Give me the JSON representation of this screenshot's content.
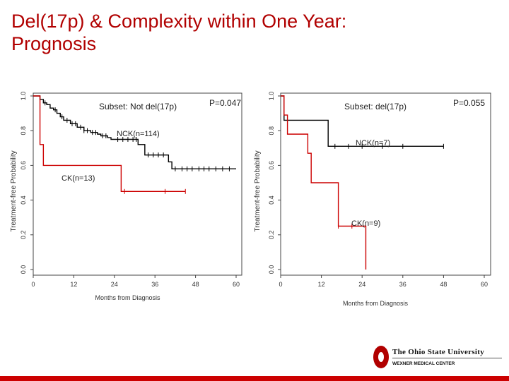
{
  "slide": {
    "title_line1": "Del(17p) & Complexity within One Year:",
    "title_line2": "Prognosis",
    "accent_color": "#cc0000"
  },
  "logo": {
    "name": "The Ohio State University",
    "subtitle": "WEXNER MEDICAL CENTER",
    "color": "#b10000"
  },
  "chart_data": [
    {
      "type": "line",
      "subset_label": "Subset: Not del(17p)",
      "p_value": "P=0.047",
      "xlabel": "Months from Diagnosis",
      "ylabel": "Treatment-free Probability",
      "xlim": [
        0,
        60
      ],
      "ylim": [
        0,
        1
      ],
      "x_ticks": [
        "0",
        "12",
        "24",
        "36",
        "48",
        "60"
      ],
      "y_ticks": [
        "0.0",
        "0.2",
        "0.4",
        "0.6",
        "0.8",
        "1.0"
      ],
      "grid": false,
      "series": [
        {
          "name": "NCK(n=114)",
          "color": "#000000",
          "x": [
            0,
            2,
            3,
            4,
            5,
            6,
            7,
            8,
            9,
            11,
            13,
            15,
            17,
            19,
            20,
            22,
            23,
            31,
            33,
            40,
            41,
            60
          ],
          "y": [
            1.0,
            0.98,
            0.96,
            0.95,
            0.93,
            0.92,
            0.9,
            0.88,
            0.86,
            0.84,
            0.82,
            0.8,
            0.79,
            0.78,
            0.77,
            0.76,
            0.75,
            0.72,
            0.66,
            0.62,
            0.58,
            0.58
          ],
          "censor_x": [
            3.5,
            6.5,
            8.5,
            10,
            11.5,
            12.5,
            14,
            15,
            16,
            17.5,
            18.5,
            20.5,
            21.5,
            25,
            26.5,
            28,
            29.5,
            30.5,
            34,
            35.5,
            37,
            38.5,
            42,
            44,
            45.5,
            47,
            49,
            50.5,
            52,
            54,
            56,
            58
          ]
        },
        {
          "name": "CK(n=13)",
          "color": "#cc0000",
          "x": [
            0,
            2,
            3,
            26,
            45
          ],
          "y": [
            1.0,
            0.72,
            0.6,
            0.45,
            0.45
          ],
          "censor_x": [
            27,
            39,
            45
          ]
        }
      ]
    },
    {
      "type": "line",
      "subset_label": "Subset: del(17p)",
      "p_value": "P=0.055",
      "xlabel": "Months from Diagnosis",
      "ylabel": "Treatment-free Probability",
      "xlim": [
        0,
        60
      ],
      "ylim": [
        0,
        1
      ],
      "x_ticks": [
        "0",
        "12",
        "24",
        "36",
        "48",
        "60"
      ],
      "y_ticks": [
        "0.0",
        "0.2",
        "0.4",
        "0.6",
        "0.8",
        "1.0"
      ],
      "grid": false,
      "series": [
        {
          "name": "NCK(n=7)",
          "color": "#000000",
          "x": [
            0,
            1,
            14,
            48
          ],
          "y": [
            1.0,
            0.86,
            0.71,
            0.71
          ],
          "censor_x": [
            16,
            20,
            24,
            30,
            36,
            48
          ]
        },
        {
          "name": "CK(n=9)",
          "color": "#cc0000",
          "x": [
            0,
            1,
            2,
            8,
            9,
            16,
            17,
            25,
            25.1
          ],
          "y": [
            1.0,
            0.89,
            0.78,
            0.67,
            0.5,
            0.5,
            0.25,
            0.25,
            0.0
          ],
          "censor_x": [
            17,
            21
          ]
        }
      ]
    }
  ]
}
